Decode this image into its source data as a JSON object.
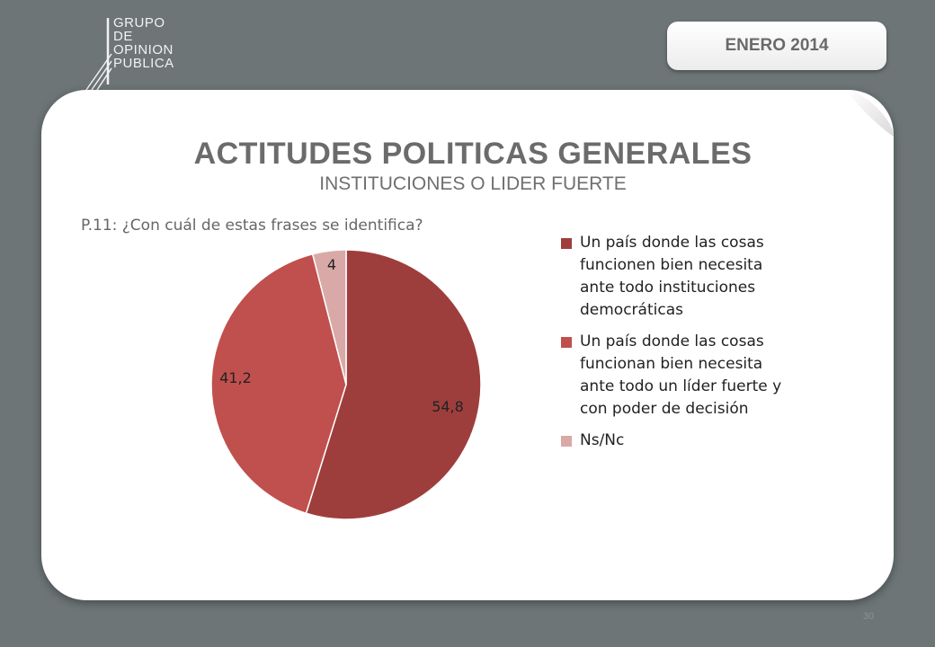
{
  "logo": {
    "lines": [
      "GRUPO",
      "DE",
      "OPINION",
      "PUBLICA"
    ]
  },
  "date_badge": "ENERO 2014",
  "title": "ACTITUDES POLITICAS GENERALES",
  "subtitle": "INSTITUCIONES O LIDER FUERTE",
  "question": "P.11: ¿Con cuál de estas frases se identifica?",
  "page_number": "30",
  "chart_data": {
    "type": "pie",
    "categories": [
      "Un país donde las cosas funcionen bien necesita ante todo instituciones democráticas",
      "Un país  donde las cosas funcionan bien necesita ante todo un líder fuerte y con poder de decisión",
      "Ns/Nc"
    ],
    "values": [
      54.8,
      41.2,
      4
    ],
    "data_labels": [
      "54,8",
      "41,2",
      "4"
    ],
    "colors": [
      "#9e3e3c",
      "#c0504d",
      "#d9a9a8"
    ],
    "start": "12 o'clock, clockwise",
    "legend_position": "right"
  }
}
